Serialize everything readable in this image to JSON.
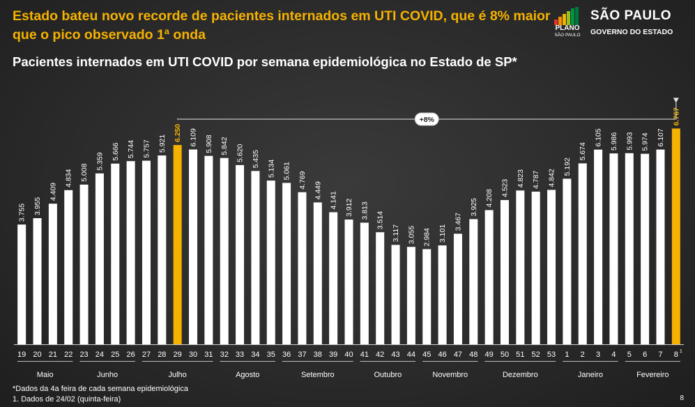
{
  "headline": "Estado bateu novo recorde de pacientes internados em UTI COVID, que é 8% maior que o pico observado 1ª onda",
  "subtitle": "Pacientes internados em UTI COVID por semana epidemiológica no Estado de SP*",
  "logos": {
    "plano_label": "PLANO",
    "plano_sub": "SÃO PAULO",
    "sp_name": "SÃO PAULO",
    "sp_gov": "GOVERNO DO ESTADO"
  },
  "footnotes": [
    "*Dados da 4a feira de cada semana epidemiológica",
    "1. Dados de 24/02 (quinta-feira)"
  ],
  "page_number": "8",
  "colors": {
    "highlight": "#F5B200",
    "bar": "#FFFFFF",
    "background": "#2b2b2b"
  },
  "chart_data": {
    "type": "bar",
    "categories": [
      "19",
      "20",
      "21",
      "22",
      "23",
      "24",
      "25",
      "26",
      "27",
      "28",
      "29",
      "30",
      "31",
      "32",
      "33",
      "34",
      "35",
      "36",
      "37",
      "38",
      "39",
      "40",
      "41",
      "42",
      "43",
      "44",
      "45",
      "46",
      "47",
      "48",
      "49",
      "50",
      "51",
      "52",
      "53",
      "1",
      "2",
      "3",
      "4",
      "5",
      "6",
      "7",
      "8"
    ],
    "last_category_superscript": "1",
    "values": [
      3755,
      3955,
      4409,
      4834,
      5008,
      5359,
      5666,
      5744,
      5757,
      5921,
      6250,
      6109,
      5908,
      5842,
      5620,
      5435,
      5134,
      5061,
      4769,
      4449,
      4141,
      3912,
      3813,
      3514,
      3117,
      3055,
      2984,
      3101,
      3467,
      3925,
      4208,
      4523,
      4823,
      4787,
      4842,
      5192,
      5674,
      6105,
      5986,
      5993,
      5974,
      6107,
      6767
    ],
    "value_labels": [
      "3.755",
      "3.955",
      "4.409",
      "4.834",
      "5.008",
      "5.359",
      "5.666",
      "5.744",
      "5.757",
      "5.921",
      "6.250",
      "6.109",
      "5.908",
      "5.842",
      "5.620",
      "5.435",
      "5.134",
      "5.061",
      "4.769",
      "4.449",
      "4.141",
      "3.912",
      "3.813",
      "3.514",
      "3.117",
      "3.055",
      "2.984",
      "3.101",
      "3.467",
      "3.925",
      "4.208",
      "4.523",
      "4.823",
      "4.787",
      "4.842",
      "5.192",
      "5.674",
      "6.105",
      "5.986",
      "5.993",
      "5.974",
      "6.107",
      "6.767"
    ],
    "highlighted": [
      "29",
      "8"
    ],
    "ylim": [
      0,
      7300
    ],
    "months": [
      {
        "name": "Maio",
        "first": "19",
        "last": "22"
      },
      {
        "name": "Junho",
        "first": "23",
        "last": "26"
      },
      {
        "name": "Julho",
        "first": "27",
        "last": "31"
      },
      {
        "name": "Agosto",
        "first": "32",
        "last": "35"
      },
      {
        "name": "Setembro",
        "first": "36",
        "last": "40"
      },
      {
        "name": "Outubro",
        "first": "41",
        "last": "44"
      },
      {
        "name": "Novembro",
        "first": "45",
        "last": "48"
      },
      {
        "name": "Dezembro",
        "first": "49",
        "last": "53"
      },
      {
        "name": "Janeiro",
        "first": "1",
        "last": "4"
      },
      {
        "name": "Fevereiro",
        "first": "5",
        "last": "8"
      }
    ],
    "comparison": {
      "label": "+8%",
      "from": "29",
      "to": "8"
    }
  }
}
